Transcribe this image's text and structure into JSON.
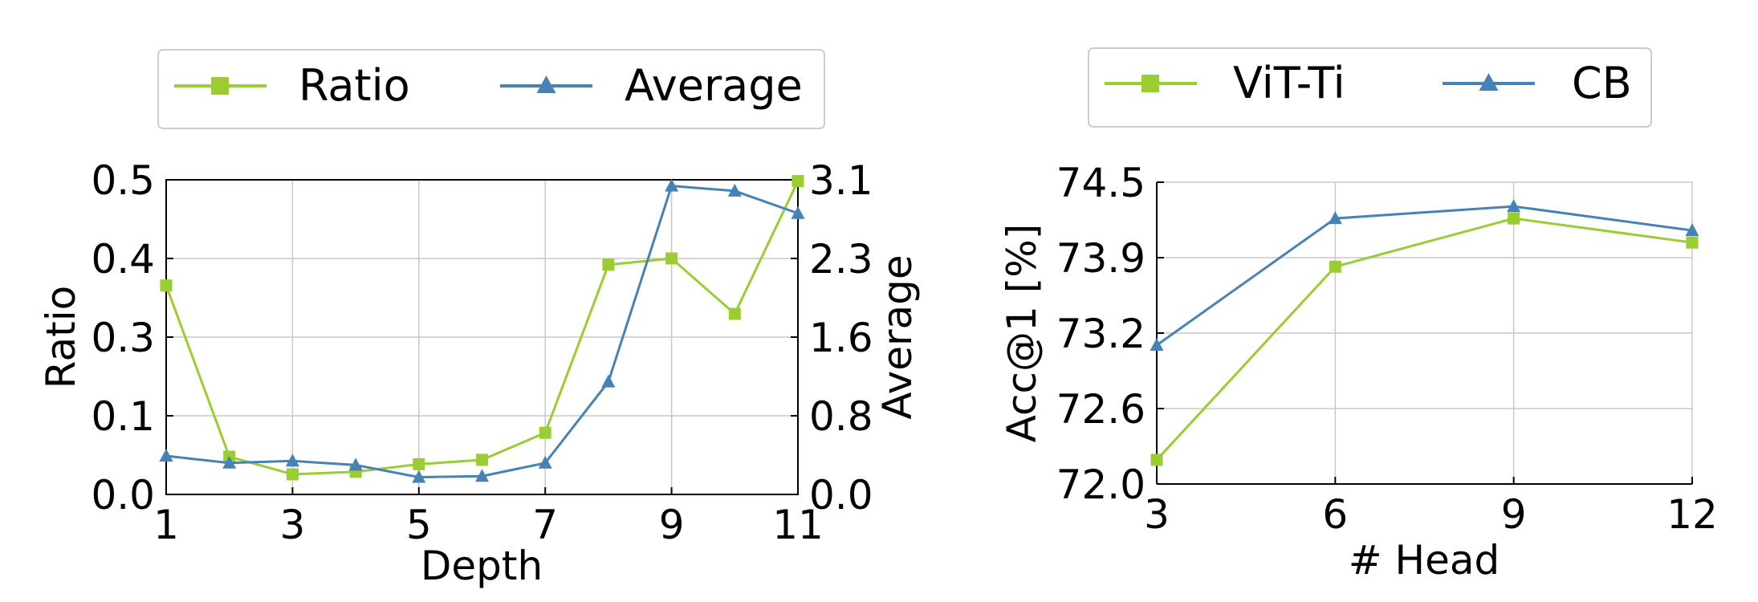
{
  "colors": {
    "green": "#9acd32",
    "blue": "#4682b4"
  },
  "chart_data": [
    {
      "type": "line",
      "xlabel": "Depth",
      "ylabel": "Ratio",
      "y2label": "Average",
      "x": [
        1,
        2,
        3,
        4,
        5,
        6,
        7,
        8,
        9,
        10,
        11
      ],
      "xlim": [
        1,
        11
      ],
      "xticks": [
        "1",
        "3",
        "5",
        "7",
        "9",
        "11"
      ],
      "ylim": [
        0,
        0.5
      ],
      "yticks": [
        "0.0",
        "0.1",
        "0.3",
        "0.4",
        "0.5"
      ],
      "y2lim": [
        0,
        3.1
      ],
      "y2ticks": [
        "0.0",
        "0.8",
        "1.6",
        "2.3",
        "3.1"
      ],
      "grid": true,
      "legend_position": "top-center",
      "series": [
        {
          "name": "Ratio",
          "axis": "left",
          "marker": "square",
          "color": "#9acd32",
          "values": [
            0.332,
            0.06,
            0.032,
            0.036,
            0.048,
            0.055,
            0.098,
            0.365,
            0.375,
            0.287,
            0.498
          ]
        },
        {
          "name": "Average",
          "axis": "right",
          "marker": "triangle",
          "color": "#4682b4",
          "values": [
            0.38,
            0.31,
            0.33,
            0.29,
            0.17,
            0.18,
            0.31,
            1.11,
            3.04,
            2.99,
            2.77
          ]
        }
      ]
    },
    {
      "type": "line",
      "xlabel": "# Head",
      "ylabel": "Acc@1 [%]",
      "x": [
        3,
        6,
        9,
        12
      ],
      "xlim": [
        3,
        12
      ],
      "xticks": [
        "3",
        "6",
        "9",
        "12"
      ],
      "ylim": [
        72.0,
        74.5
      ],
      "yticks": [
        "72.0",
        "72.6",
        "73.2",
        "73.9",
        "74.5"
      ],
      "grid": true,
      "legend_position": "top-center",
      "series": [
        {
          "name": "ViT-Ti",
          "marker": "square",
          "color": "#9acd32",
          "values": [
            72.2,
            73.8,
            74.2,
            74.0
          ]
        },
        {
          "name": "CB",
          "marker": "triangle",
          "color": "#4682b4",
          "values": [
            73.15,
            74.2,
            74.3,
            74.1
          ]
        }
      ]
    }
  ]
}
